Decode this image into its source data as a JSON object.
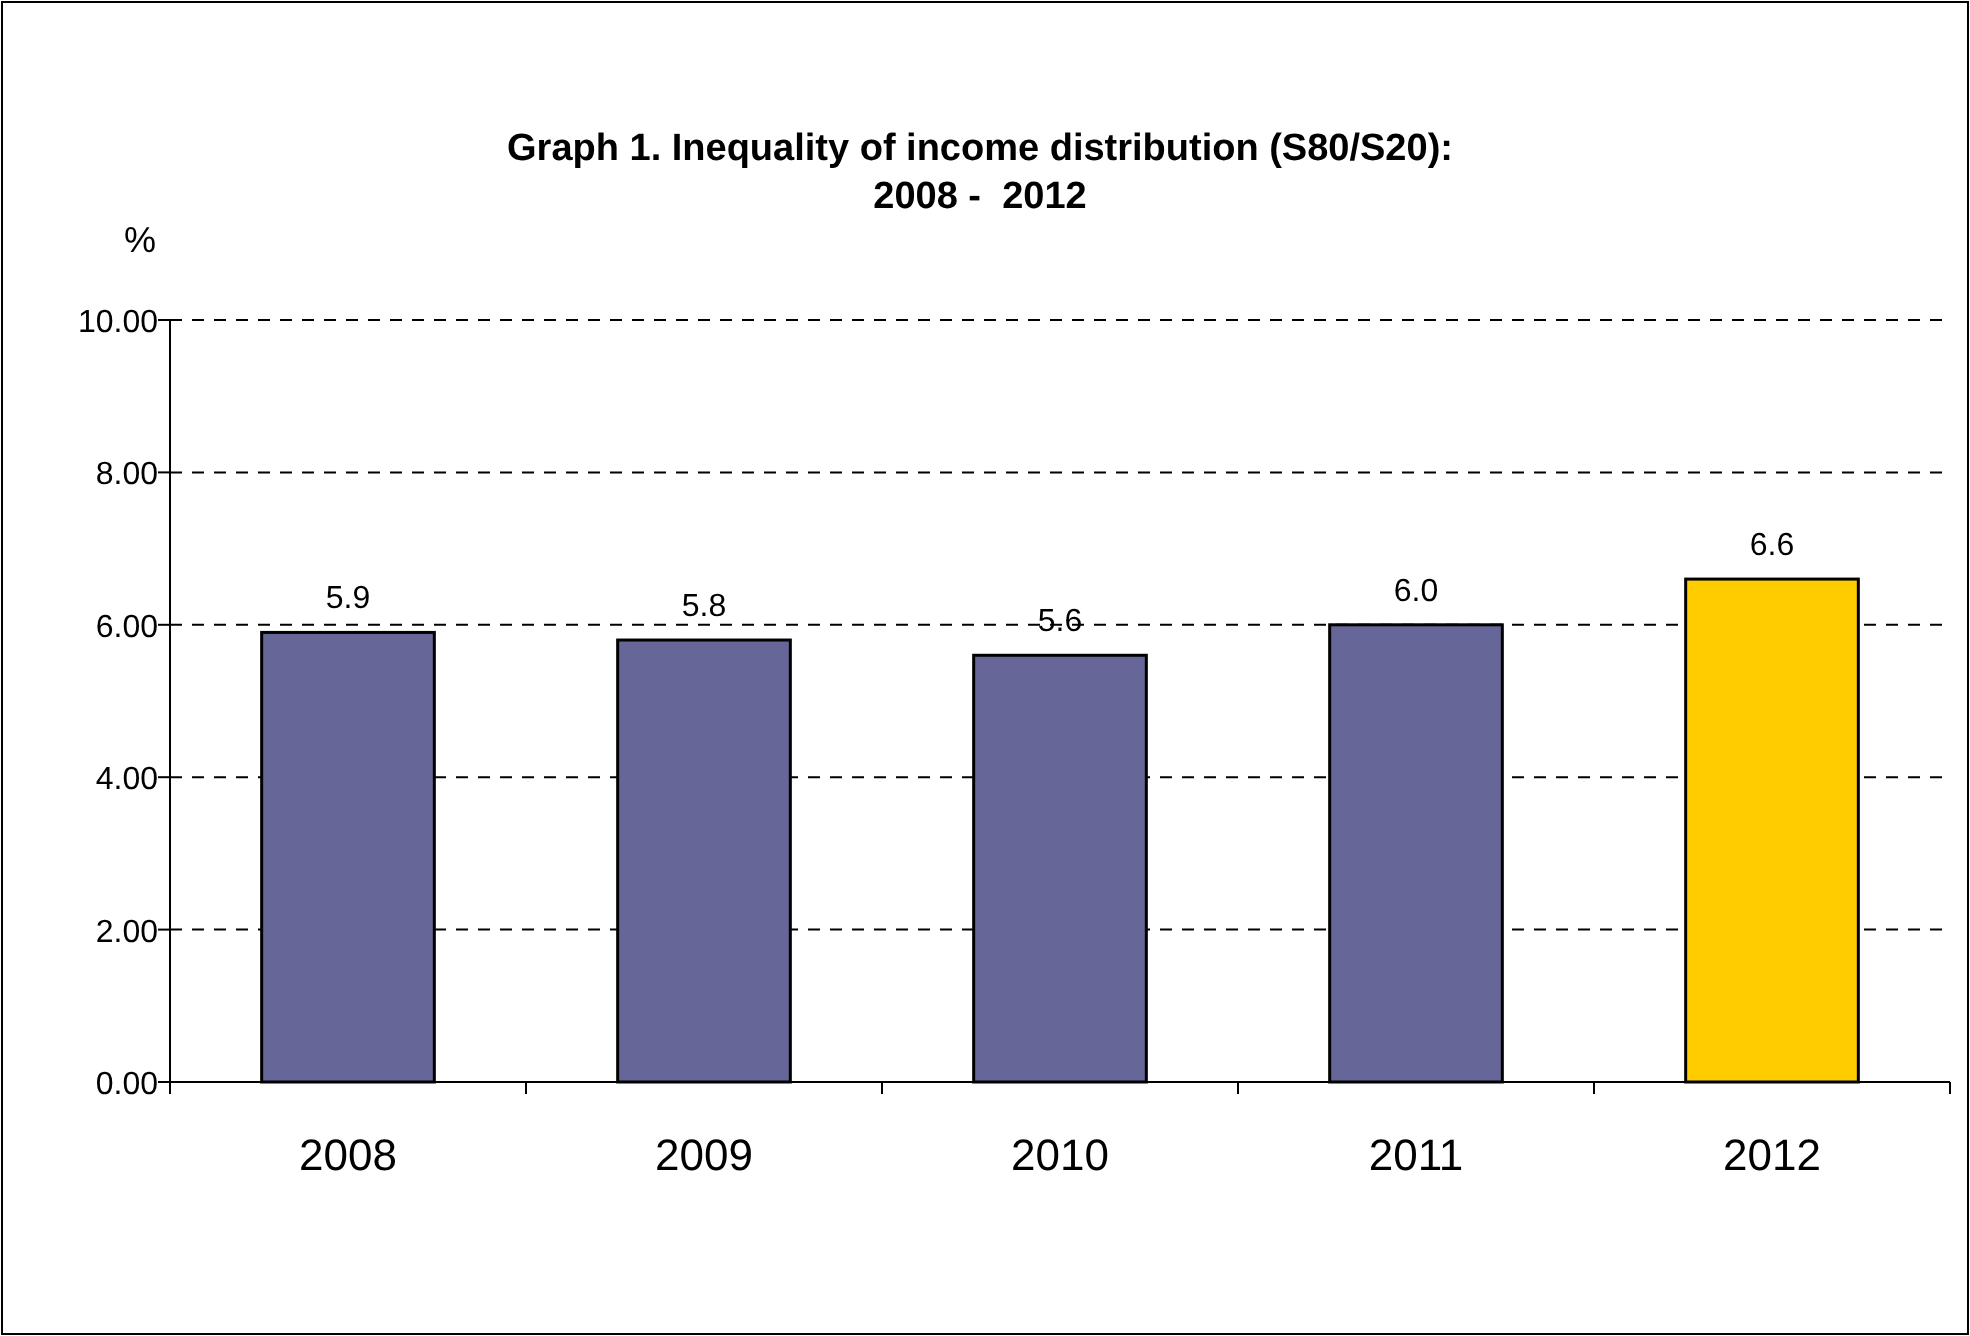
{
  "chart_data": {
    "type": "bar",
    "title": "Graph 1. Inequality of income distribution (S80/S20):\n2008 -  2012",
    "ylabel": "%",
    "categories": [
      "2008",
      "2009",
      "2010",
      "2011",
      "2012"
    ],
    "values": [
      5.9,
      5.8,
      5.6,
      6.0,
      6.6
    ],
    "value_labels": [
      "5.9",
      "5.8",
      "5.6",
      "6.0",
      "6.6"
    ],
    "colors": [
      "#666699",
      "#666699",
      "#666699",
      "#666699",
      "#ffcc00"
    ],
    "ylim": [
      0,
      10
    ],
    "yticks": [
      {
        "value": 0,
        "label": "0.00"
      },
      {
        "value": 2,
        "label": "2.00"
      },
      {
        "value": 4,
        "label": "4.00"
      },
      {
        "value": 6,
        "label": "6.00"
      },
      {
        "value": 8,
        "label": "8.00"
      },
      {
        "value": 10,
        "label": "10.00"
      }
    ],
    "grid": "y"
  }
}
